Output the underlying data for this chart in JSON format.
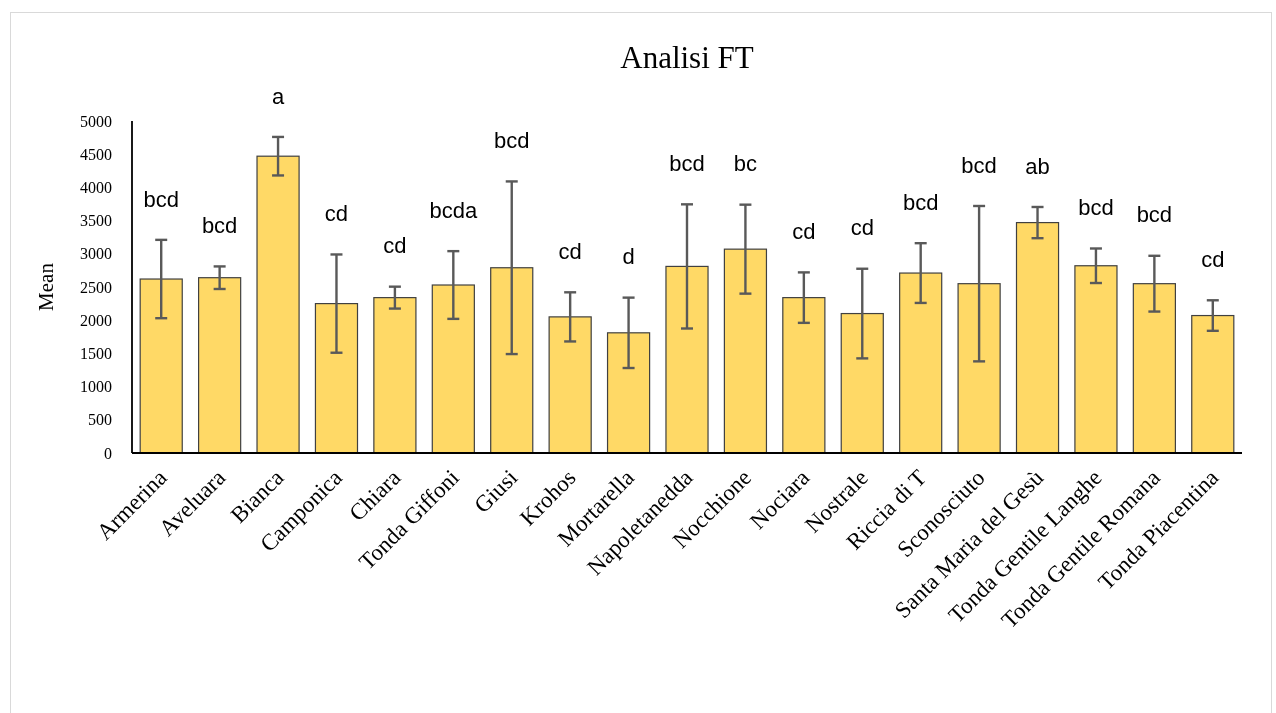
{
  "chart_data": {
    "type": "bar",
    "title": "Analisi FT",
    "ylabel": "Mean",
    "categories": [
      "Armerina",
      "Aveluara",
      "Bianca",
      "Camponica",
      "Chiara",
      "Tonda Giffoni",
      "Giusi",
      "Krohos",
      "Mortarella",
      "Napoletanedda",
      "Nocchione",
      "Nociara",
      "Nostrale",
      "Riccia di T",
      "Sconosciuto",
      "Santa Maria del Gesù",
      "Tonda Gentile Langhe",
      "Tonda Gentile Romana",
      "Tonda Piacentina"
    ],
    "values": [
      2620,
      2640,
      4470,
      2250,
      2340,
      2530,
      2790,
      2050,
      1810,
      2810,
      3070,
      2340,
      2100,
      2710,
      2550,
      3470,
      2820,
      2550,
      2070
    ],
    "errors": [
      590,
      170,
      290,
      740,
      165,
      510,
      1300,
      370,
      530,
      935,
      670,
      380,
      675,
      450,
      1170,
      235,
      260,
      420,
      230
    ],
    "color": "#ffd966",
    "ylim": [
      0,
      5000
    ],
    "yticks": [
      0,
      500,
      1000,
      1500,
      2000,
      2500,
      3000,
      3500,
      4000,
      4500,
      5000
    ],
    "annotations": [
      "bcd",
      "bcd",
      "a",
      "cd",
      "cd",
      "bcda",
      "bcd",
      "cd",
      "d",
      "bcd",
      "bc",
      "cd",
      "cd",
      "bcd",
      "bcd",
      "ab",
      "bcd",
      "bcd",
      "cd"
    ]
  }
}
